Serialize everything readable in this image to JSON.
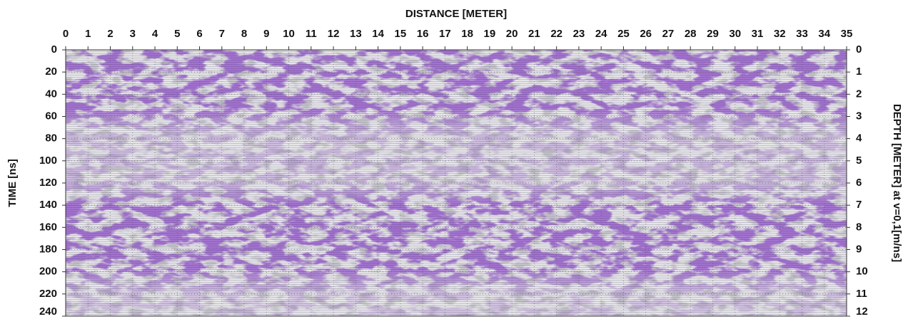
{
  "chart_data": {
    "type": "radargram",
    "xlabel": "DISTANCE [METER]",
    "ylabel": "TIME [ns]",
    "y2label": "DEPTH [METER] at v=0,1[m/ns]",
    "xlim": [
      0,
      35
    ],
    "xticks": [
      0,
      1,
      2,
      3,
      4,
      5,
      6,
      7,
      8,
      9,
      10,
      11,
      12,
      13,
      14,
      15,
      16,
      17,
      18,
      19,
      20,
      21,
      22,
      23,
      24,
      25,
      26,
      27,
      28,
      29,
      30,
      31,
      32,
      33,
      34,
      35
    ],
    "ylim": [
      240,
      0
    ],
    "yticks": [
      0,
      20,
      40,
      60,
      80,
      100,
      120,
      140,
      160,
      180,
      200,
      220,
      240
    ],
    "y2lim": [
      12,
      0
    ],
    "y2ticks": [
      0,
      1,
      2,
      3,
      4,
      5,
      6,
      7,
      8,
      9,
      10,
      11,
      12
    ],
    "color": "#5b2a9c",
    "grid": true
  }
}
